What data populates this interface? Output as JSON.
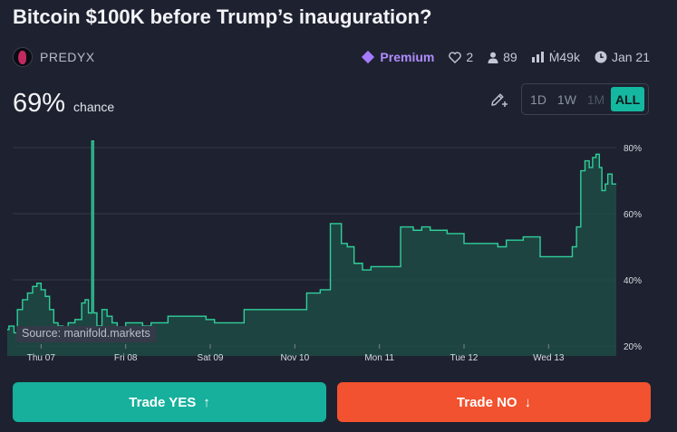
{
  "market": {
    "title": "Bitcoin $100K before Trump’s inauguration?",
    "author": "PREDYX"
  },
  "stats": {
    "premium_label": "Premium",
    "likes": "2",
    "traders": "89",
    "volume": "Ṁ49k",
    "close_date": "Jan 21"
  },
  "probability": {
    "value": "69%",
    "label": "chance"
  },
  "ranges": [
    "1D",
    "1W",
    "1M",
    "ALL"
  ],
  "active_range": "ALL",
  "source_label": "Source: manifold.markets",
  "buttons": {
    "yes": "Trade YES",
    "yes_arrow": "↑",
    "no": "Trade NO",
    "no_arrow": "↓"
  },
  "colors": {
    "accent": "#14b8a0",
    "line": "#2fcf9a",
    "yes": "#16b09c",
    "no": "#f2522f",
    "premium": "#a57bff"
  },
  "chart_data": {
    "type": "area",
    "y_unit": "%",
    "ylim": [
      20,
      80
    ],
    "y_ticks": [
      "80%",
      "60%",
      "40%",
      "20%"
    ],
    "y_tick_values": [
      80,
      60,
      40,
      20
    ],
    "x_ticks": [
      "Thu 07",
      "Fri 08",
      "Sat 09",
      "Nov 10",
      "Mon 11",
      "Tue 12",
      "Wed 13"
    ],
    "x_tick_values": [
      1,
      2,
      3,
      4,
      5,
      6,
      7
    ],
    "x_range": [
      0.6,
      7.8
    ],
    "points": [
      [
        0.6,
        25
      ],
      [
        0.62,
        26
      ],
      [
        0.68,
        24
      ],
      [
        0.72,
        31
      ],
      [
        0.78,
        34
      ],
      [
        0.84,
        36
      ],
      [
        0.9,
        38
      ],
      [
        0.95,
        39
      ],
      [
        1.0,
        37
      ],
      [
        1.05,
        35
      ],
      [
        1.1,
        31
      ],
      [
        1.15,
        27
      ],
      [
        1.2,
        26
      ],
      [
        1.26,
        25
      ],
      [
        1.32,
        27
      ],
      [
        1.4,
        28
      ],
      [
        1.48,
        33
      ],
      [
        1.52,
        34
      ],
      [
        1.56,
        30
      ],
      [
        1.6,
        82
      ],
      [
        1.62,
        30
      ],
      [
        1.66,
        26
      ],
      [
        1.72,
        31
      ],
      [
        1.78,
        29
      ],
      [
        1.84,
        27
      ],
      [
        1.9,
        25
      ],
      [
        2.0,
        27
      ],
      [
        2.1,
        27
      ],
      [
        2.2,
        26
      ],
      [
        2.3,
        27
      ],
      [
        2.4,
        27
      ],
      [
        2.5,
        29
      ],
      [
        2.6,
        29
      ],
      [
        2.7,
        29
      ],
      [
        2.8,
        29
      ],
      [
        2.95,
        28
      ],
      [
        3.05,
        27
      ],
      [
        3.2,
        27
      ],
      [
        3.35,
        27
      ],
      [
        3.4,
        31
      ],
      [
        3.5,
        31
      ],
      [
        3.6,
        31
      ],
      [
        3.7,
        31
      ],
      [
        3.9,
        31
      ],
      [
        4.08,
        31
      ],
      [
        4.14,
        36
      ],
      [
        4.3,
        37
      ],
      [
        4.42,
        57
      ],
      [
        4.52,
        57
      ],
      [
        4.55,
        51
      ],
      [
        4.62,
        50
      ],
      [
        4.7,
        45
      ],
      [
        4.8,
        43
      ],
      [
        4.9,
        44
      ],
      [
        5.0,
        44
      ],
      [
        5.1,
        44
      ],
      [
        5.2,
        44
      ],
      [
        5.25,
        56
      ],
      [
        5.4,
        55
      ],
      [
        5.5,
        56
      ],
      [
        5.6,
        55
      ],
      [
        5.7,
        55
      ],
      [
        5.8,
        54
      ],
      [
        5.9,
        54
      ],
      [
        6.0,
        51
      ],
      [
        6.1,
        51
      ],
      [
        6.2,
        51
      ],
      [
        6.3,
        51
      ],
      [
        6.4,
        50
      ],
      [
        6.5,
        52
      ],
      [
        6.6,
        52
      ],
      [
        6.7,
        53
      ],
      [
        6.8,
        53
      ],
      [
        6.9,
        47
      ],
      [
        7.0,
        47
      ],
      [
        7.1,
        47
      ],
      [
        7.2,
        47
      ],
      [
        7.28,
        50
      ],
      [
        7.33,
        56
      ],
      [
        7.38,
        73
      ],
      [
        7.43,
        76
      ],
      [
        7.48,
        74
      ],
      [
        7.52,
        77
      ],
      [
        7.56,
        78
      ],
      [
        7.6,
        74
      ],
      [
        7.63,
        67
      ],
      [
        7.67,
        69
      ],
      [
        7.7,
        72
      ],
      [
        7.75,
        69
      ],
      [
        7.8,
        69
      ]
    ]
  }
}
